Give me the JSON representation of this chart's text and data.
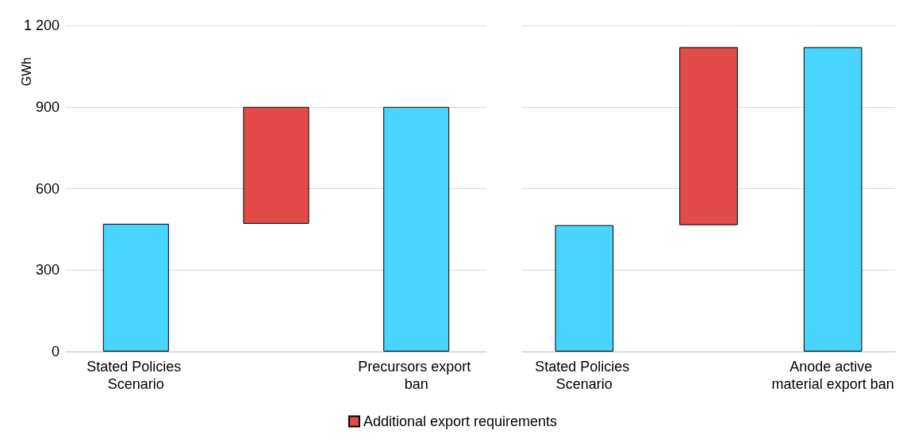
{
  "chart_data": [
    {
      "type": "bar",
      "ylabel": "GWh",
      "categories": [
        "Stated Policies Scenario",
        null,
        "Precursors export ban"
      ],
      "series": [
        {
          "color": "#47d4ff",
          "values": [
            470,
            null,
            900
          ]
        },
        {
          "name": "Additional export requirements",
          "color": "#e24b4a",
          "values": [
            null,
            430,
            null
          ],
          "base": [
            null,
            470,
            null
          ]
        }
      ],
      "ylim": [
        0,
        1200
      ],
      "yticks": [
        0,
        300,
        600,
        900,
        {
          "value": 1200,
          "label": "1 200"
        }
      ],
      "grid": "y",
      "legend": "bottom"
    },
    {
      "type": "bar",
      "categories": [
        "Stated Policies Scenario",
        null,
        "Anode active material export ban"
      ],
      "series": [
        {
          "color": "#47d4ff",
          "values": [
            465,
            null,
            1120
          ]
        },
        {
          "name": "Additional export requirements",
          "color": "#e24b4a",
          "values": [
            null,
            655,
            null
          ],
          "base": [
            null,
            465,
            null
          ]
        }
      ],
      "ylim": [
        0,
        1200
      ],
      "yticks": [
        0,
        300,
        600,
        900,
        1200
      ],
      "grid": "y",
      "tick_labels": "x",
      "legend": "bottom"
    }
  ]
}
